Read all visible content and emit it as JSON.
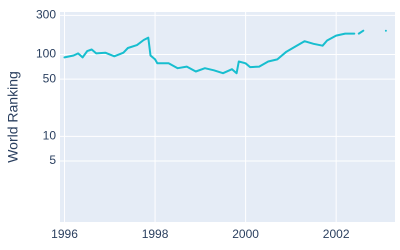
{
  "chart_data": {
    "type": "line",
    "y_label": "World Ranking",
    "x": [
      1996.0,
      1996.2,
      1996.3,
      1996.4,
      1996.5,
      1996.6,
      1996.7,
      1996.9,
      1997.1,
      1997.3,
      1997.4,
      1997.6,
      1997.75,
      1997.85,
      1997.9,
      1998.0,
      1998.05,
      1998.3,
      1998.5,
      1998.7,
      1998.9,
      1999.1,
      1999.3,
      1999.5,
      1999.7,
      1999.8,
      1999.85,
      2000.0,
      2000.1,
      2000.3,
      2000.5,
      2000.7,
      2000.9,
      2001.1,
      2001.3,
      2001.5,
      2001.7,
      2001.8,
      2002.0,
      2002.2,
      2002.4,
      2002.45,
      2002.5,
      2002.6,
      2002.8,
      2003.1
    ],
    "series": [
      {
        "color": "#17becf",
        "values": [
          92,
          97,
          103,
          92,
          110,
          115,
          103,
          105,
          95,
          105,
          120,
          130,
          150,
          160,
          97,
          87,
          78,
          78,
          68,
          71,
          62,
          68,
          64,
          59,
          66,
          59,
          82,
          78,
          70,
          71,
          82,
          87,
          108,
          125,
          145,
          135,
          128,
          148,
          170,
          180,
          180,
          null,
          180,
          195,
          null,
          195
        ]
      }
    ],
    "xlim": [
      1995.9,
      2003.3
    ],
    "xticks": [
      1996,
      1998,
      2000,
      2002
    ],
    "ylim": [
      0.9,
      330
    ],
    "yticks": [
      5,
      10,
      50,
      100,
      300
    ],
    "log_y": true,
    "grid": true
  }
}
